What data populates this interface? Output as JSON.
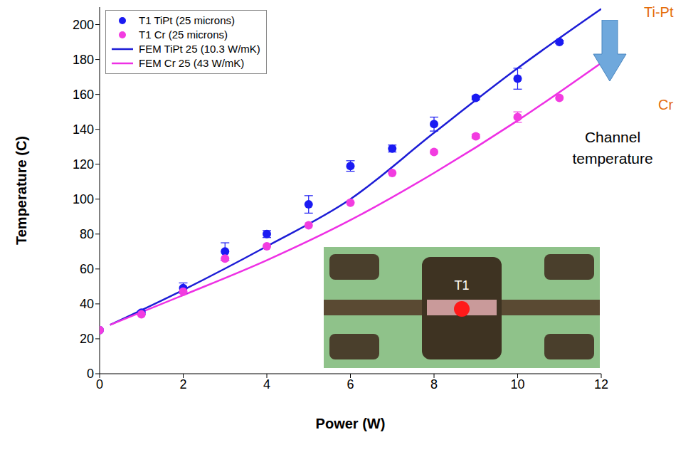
{
  "chart_data": {
    "type": "scatter",
    "x_label": "Power (W)",
    "y_label": "Temperature (C)",
    "xlim": [
      0,
      12
    ],
    "xticks": [
      0,
      2,
      4,
      6,
      8,
      10,
      12
    ],
    "ylim": [
      0,
      210
    ],
    "yticks": [
      0,
      20,
      40,
      60,
      80,
      100,
      120,
      140,
      160,
      180,
      200
    ],
    "grid": false,
    "legend": "upper left",
    "series": [
      {
        "name": "T1 TiPt (25 microns)",
        "type": "scatter",
        "marker": "circle",
        "color": "#1a1af2",
        "x": [
          0,
          1,
          2,
          3,
          4,
          5,
          6,
          7,
          8,
          9,
          10,
          11
        ],
        "values": [
          25,
          35,
          49,
          70,
          80,
          97,
          119,
          129,
          143,
          158,
          169,
          190
        ],
        "errors": [
          0,
          1,
          3,
          5,
          2,
          5,
          3,
          2,
          4,
          1,
          6,
          1
        ]
      },
      {
        "name": "T1 Cr (25 microns)",
        "type": "scatter",
        "marker": "circle",
        "color": "#f23ce0",
        "x": [
          0,
          1,
          2,
          3,
          4,
          5,
          6,
          7,
          8,
          9,
          10,
          11
        ],
        "values": [
          25,
          34,
          47,
          66,
          73,
          85,
          98,
          115,
          127,
          136,
          147,
          158
        ],
        "errors": [
          0,
          0,
          0,
          0,
          0,
          0,
          0,
          0,
          0,
          1,
          3,
          0
        ]
      },
      {
        "name": "FEM TiPt 25 (10.3 W/mK)",
        "type": "line",
        "line_style": "solid",
        "color": "#1c1cd6",
        "x": [
          0.25,
          2,
          4,
          6,
          8,
          10,
          12
        ],
        "values": [
          28,
          48,
          73,
          100,
          138,
          175,
          209
        ]
      },
      {
        "name": "FEM Cr 25 (43 W/mK)",
        "type": "line",
        "line_style": "solid",
        "color": "#ee30e4",
        "x": [
          0.25,
          2,
          4,
          6,
          8,
          10,
          12
        ],
        "values": [
          28,
          45,
          65,
          88,
          115,
          145,
          178
        ]
      }
    ],
    "annotations": {
      "top_label": "Ti-Pt",
      "bottom_label": "Cr",
      "caption": "Channel temperature"
    },
    "inset_label": "T1"
  }
}
